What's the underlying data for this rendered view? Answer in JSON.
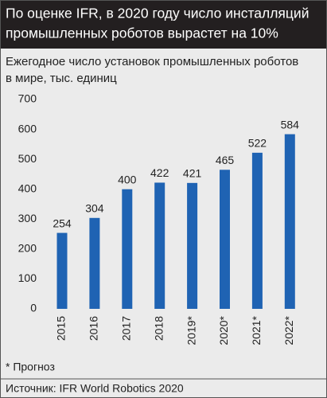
{
  "chart_data": {
    "type": "bar",
    "title": [
      "По оценке IFR, в 2020 году число инсталляций",
      "промышленных роботов вырастет на 10%"
    ],
    "subtitle": [
      "Ежегодное число установок промышленных роботов",
      "в мире, тыс. единиц"
    ],
    "categories": [
      "2015",
      "2016",
      "2017",
      "2018",
      "2019*",
      "2020*",
      "2021*",
      "2022*"
    ],
    "values": [
      254,
      304,
      400,
      422,
      421,
      465,
      522,
      584
    ],
    "color": "#1f63b3",
    "ylim": [
      0,
      700
    ],
    "yticks": [
      0,
      100,
      200,
      300,
      400,
      500,
      600,
      700
    ],
    "grid": false,
    "footnote": "* Прогноз",
    "source": "Источник: IFR World Robotics 2020"
  }
}
